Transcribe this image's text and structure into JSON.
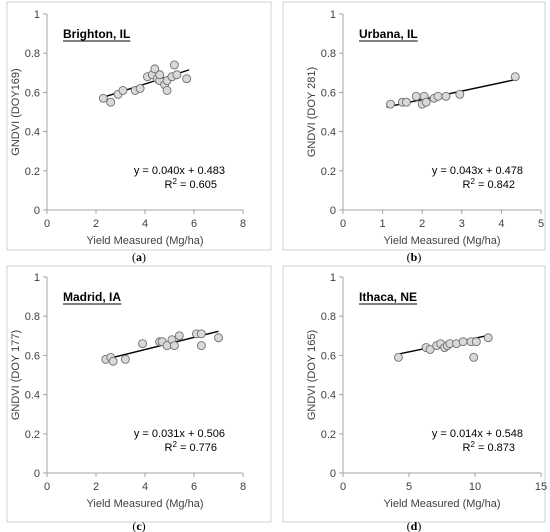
{
  "chart_data": [
    {
      "type": "scatter",
      "panel": "(a)",
      "panel_letter": "a",
      "site": "Brighton, IL",
      "xlabel": "Yield Measured (Mg/ha)",
      "ylabel": "GNDVI (DOY169)",
      "xlim": [
        0,
        8
      ],
      "ylim": [
        0,
        1
      ],
      "xticks": [
        0,
        2,
        4,
        6,
        8
      ],
      "yticks": [
        0,
        0.2,
        0.4,
        0.6,
        0.8,
        1
      ],
      "x": [
        2.3,
        2.6,
        2.9,
        3.1,
        3.6,
        3.8,
        4.1,
        4.3,
        4.4,
        4.5,
        4.6,
        4.6,
        4.8,
        4.9,
        4.9,
        5.1,
        5.2,
        5.3,
        5.7
      ],
      "y": [
        0.57,
        0.55,
        0.59,
        0.61,
        0.61,
        0.62,
        0.68,
        0.69,
        0.72,
        0.67,
        0.66,
        0.69,
        0.64,
        0.66,
        0.61,
        0.68,
        0.74,
        0.69,
        0.67
      ],
      "trendline": {
        "slope": 0.04,
        "intercept": 0.483,
        "x_range": [
          2.2,
          5.8
        ]
      },
      "equation": "y = 0.040x + 0.483",
      "r2_prefix": "R",
      "r2_sup": "2",
      "r2_suffix": " = 0.605"
    },
    {
      "type": "scatter",
      "panel": "(b)",
      "panel_letter": "b",
      "site": "Urbana, IL",
      "xlabel": "Yield Measured (Mg/ha)",
      "ylabel": "GNDVI (DOY 281)",
      "xlim": [
        0,
        5
      ],
      "ylim": [
        0,
        1
      ],
      "xticks": [
        0,
        1,
        2,
        3,
        4,
        5
      ],
      "yticks": [
        0,
        0.2,
        0.4,
        0.6,
        0.8,
        1
      ],
      "x": [
        1.2,
        1.5,
        1.6,
        1.85,
        2.0,
        2.05,
        2.1,
        2.3,
        2.4,
        2.6,
        2.95,
        4.35
      ],
      "y": [
        0.54,
        0.55,
        0.55,
        0.58,
        0.54,
        0.58,
        0.55,
        0.57,
        0.58,
        0.58,
        0.59,
        0.68
      ],
      "trendline": {
        "slope": 0.043,
        "intercept": 0.478,
        "x_range": [
          1.1,
          4.4
        ]
      },
      "equation": "y = 0.043x + 0.478",
      "r2_prefix": "R",
      "r2_sup": "2",
      "r2_suffix": " = 0.842"
    },
    {
      "type": "scatter",
      "panel": "(c)",
      "panel_letter": "c",
      "site": "Madrid, IA",
      "xlabel": "Yield Measured (Mg/ha)",
      "ylabel": "GNDVI (DOY 177)",
      "xlim": [
        0,
        8
      ],
      "ylim": [
        0,
        1
      ],
      "xticks": [
        0,
        2,
        4,
        6,
        8
      ],
      "yticks": [
        0,
        0.2,
        0.4,
        0.6,
        0.8,
        1
      ],
      "x": [
        2.4,
        2.6,
        2.7,
        3.2,
        3.9,
        4.6,
        4.7,
        4.9,
        5.1,
        5.2,
        5.4,
        6.1,
        6.3,
        6.3,
        7.0
      ],
      "y": [
        0.58,
        0.59,
        0.57,
        0.58,
        0.66,
        0.67,
        0.67,
        0.65,
        0.68,
        0.65,
        0.7,
        0.71,
        0.71,
        0.65,
        0.69
      ],
      "trendline": {
        "slope": 0.031,
        "intercept": 0.506,
        "x_range": [
          2.4,
          7.0
        ]
      },
      "equation": "y = 0.031x + 0.506",
      "r2_prefix": "R",
      "r2_sup": "2",
      "r2_suffix": " = 0.776"
    },
    {
      "type": "scatter",
      "panel": "(d)",
      "panel_letter": "d",
      "site": "Ithaca, NE",
      "xlabel": "Yield Measured (Mg/ha)",
      "ylabel": "GNDVI (DOY 165)",
      "xlim": [
        0,
        15
      ],
      "ylim": [
        0,
        1
      ],
      "xticks": [
        0,
        5,
        10,
        15
      ],
      "yticks": [
        0,
        0.2,
        0.4,
        0.6,
        0.8,
        1
      ],
      "x": [
        4.2,
        6.3,
        6.6,
        7.1,
        7.4,
        7.7,
        7.9,
        8.1,
        8.6,
        9.1,
        9.7,
        10.1,
        9.9,
        11.0
      ],
      "y": [
        0.59,
        0.64,
        0.63,
        0.65,
        0.66,
        0.64,
        0.65,
        0.66,
        0.66,
        0.67,
        0.67,
        0.67,
        0.59,
        0.69
      ],
      "trendline": {
        "slope": 0.014,
        "intercept": 0.548,
        "x_range": [
          4.2,
          11.0
        ]
      },
      "equation": "y = 0.014x + 0.548",
      "r2_prefix": "R",
      "r2_sup": "2",
      "r2_suffix": " = 0.873"
    }
  ]
}
